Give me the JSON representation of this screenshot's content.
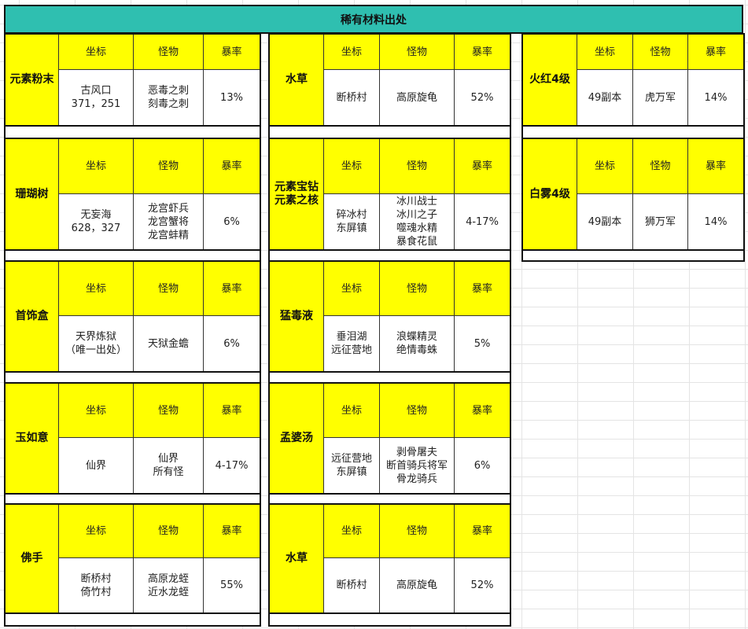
{
  "title": "稀有材料出处",
  "headers": {
    "coord": "坐标",
    "monster": "怪物",
    "rate": "暴率"
  },
  "colors": {
    "title_bg": "#2fbfb0",
    "header_bg": "#ffff00"
  },
  "columns": [
    [
      {
        "name": "元素粉末",
        "coord": "古风口\n371，251",
        "monster": "恶毒之刺\n刻毒之刺",
        "rate": "13%"
      },
      {
        "name": "珊瑚树",
        "coord": "无妄海\n628，327",
        "monster": "龙宫虾兵\n龙宫蟹将\n龙宫蚌精",
        "rate": "6%"
      },
      {
        "name": "首饰盒",
        "coord": "天界炼狱\n（唯一出处）",
        "monster": "天狱金蟾",
        "rate": "6%"
      },
      {
        "name": "玉如意",
        "coord": "仙界",
        "monster": "仙界\n所有怪",
        "rate": "4-17%"
      },
      {
        "name": "佛手",
        "coord": "断桥村\n倚竹村",
        "monster": "高原龙蛭\n近水龙蛭",
        "rate": "55%"
      }
    ],
    [
      {
        "name": "水草",
        "coord": "断桥村",
        "monster": "高原旋龟",
        "rate": "52%"
      },
      {
        "name": "元素宝钻\n元素之核",
        "coord": "碎冰村\n东屏镇",
        "monster": "冰川战士\n冰川之子\n噬魂水精\n暴食花鼠",
        "rate": "4-17%"
      },
      {
        "name": "猛毒液",
        "coord": "垂泪湖\n远征营地",
        "monster": "浪蝶精灵\n绝情毒蛛",
        "rate": "5%"
      },
      {
        "name": "孟婆汤",
        "coord": "远征营地\n东屏镇",
        "monster": "剥骨屠夫\n断首骑兵将军\n骨龙骑兵",
        "rate": "6%"
      },
      {
        "name": "水草",
        "coord": "断桥村",
        "monster": "高原旋龟",
        "rate": "52%"
      }
    ],
    [
      {
        "name": "火红4级",
        "coord": "49副本",
        "monster": "虎万军",
        "rate": "14%"
      },
      {
        "name": "白雾4级",
        "coord": "49副本",
        "monster": "狮万军",
        "rate": "14%"
      }
    ]
  ]
}
